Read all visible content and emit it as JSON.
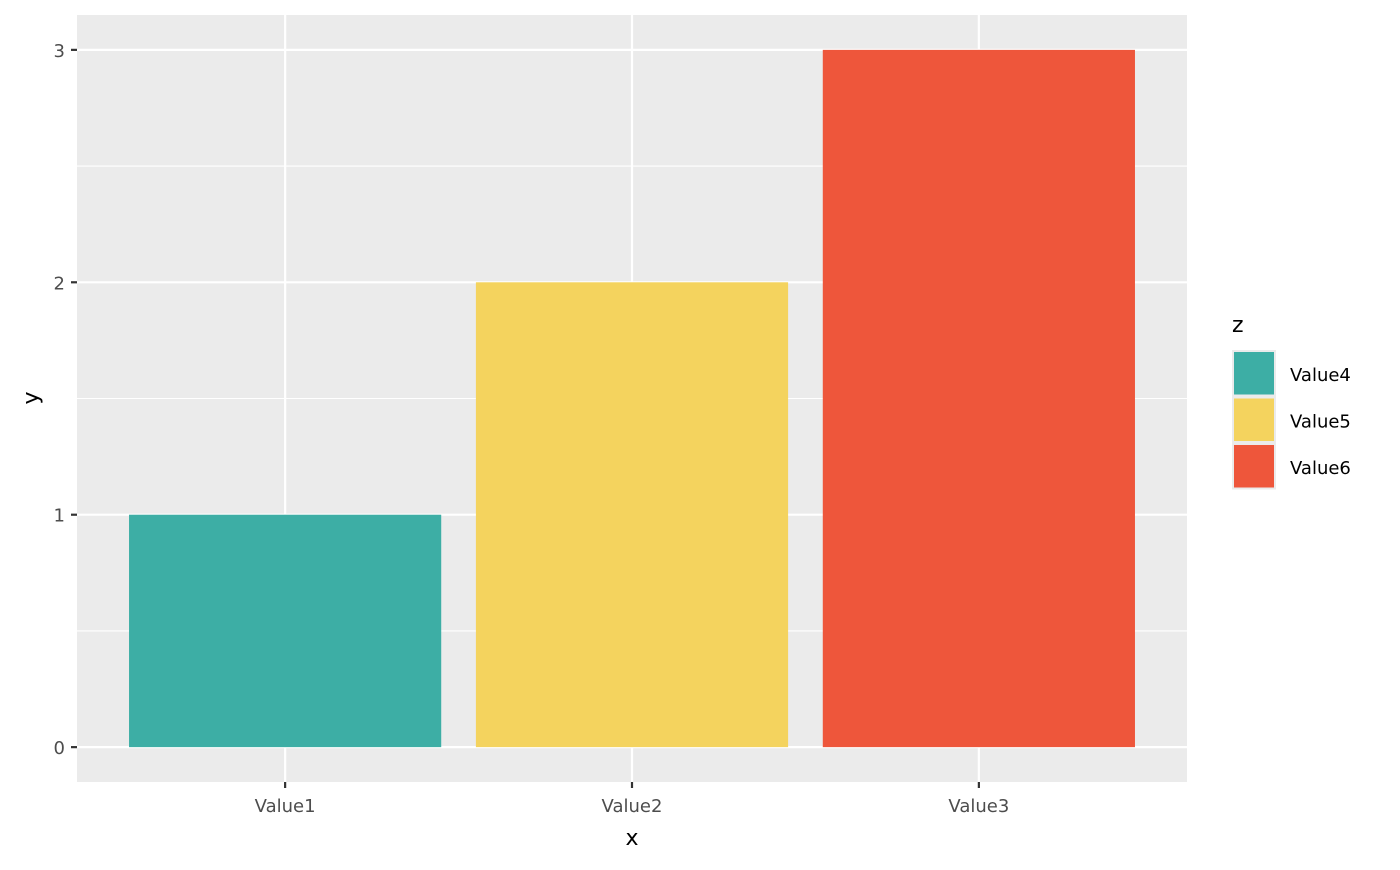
{
  "chart_data": {
    "type": "bar",
    "categories": [
      "Value1",
      "Value2",
      "Value3"
    ],
    "values": [
      1,
      2,
      3
    ],
    "fill_groups": [
      "Value4",
      "Value5",
      "Value6"
    ],
    "xlabel": "x",
    "ylabel": "y",
    "ylim": [
      -0.15,
      3.15
    ],
    "yticks": [
      0,
      1,
      2,
      3
    ],
    "ytick_labels": [
      "0",
      "1",
      "2",
      "3"
    ],
    "grid": true,
    "legend": {
      "title": "z",
      "placement": "right",
      "entries": [
        "Value4",
        "Value5",
        "Value6"
      ]
    },
    "colors": {
      "Value4": "#3DAEA5",
      "Value5": "#F4D35E",
      "Value6": "#EE563B",
      "panel": "#EBEBEB",
      "grid": "#FFFFFF"
    }
  }
}
